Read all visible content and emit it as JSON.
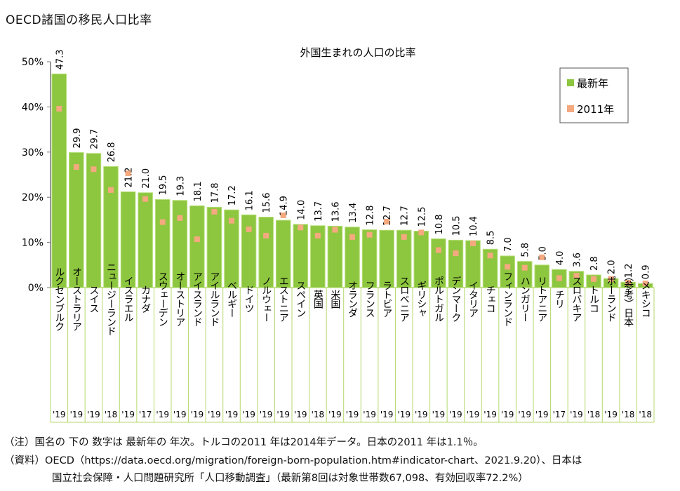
{
  "page_title": "OECD諸国の移民人口比率",
  "chart_data": {
    "type": "bar",
    "title": "外国生まれの人口の比率",
    "xlabel": "",
    "ylabel": "",
    "ylim": [
      0,
      50
    ],
    "yticks": [
      "0%",
      "10%",
      "20%",
      "30%",
      "40%",
      "50%"
    ],
    "legend": {
      "placement": "top-right",
      "entries": [
        "最新年",
        "2011年"
      ]
    },
    "colors": {
      "latest": "#8DC63F",
      "y2011": "#F4A97F"
    },
    "categories": [
      "ルクセンブルク",
      "オーストラリア",
      "スイス",
      "ニュージーランド",
      "イスラエル",
      "カナダ",
      "スウェーデン",
      "オーストリア",
      "アイスランド",
      "アイルランド",
      "ベルギー",
      "ドイツ",
      "ノルウェー",
      "エストニア",
      "スペイン",
      "英国",
      "米国",
      "オランダ",
      "フランス",
      "ラトビア",
      "スロベニア",
      "ギリシャ",
      "ポルトガル",
      "デンマーク",
      "イタリア",
      "チェコ",
      "フィンランド",
      "ハンガリー",
      "リトアニア",
      "チリ",
      "スロバキア",
      "トルコ",
      "ポーランド",
      "（参考）日本",
      "メキシコ"
    ],
    "years": [
      "'19",
      "'19",
      "'19",
      "'18",
      "'19",
      "'17",
      "'19",
      "'19",
      "'19",
      "'19",
      "'19",
      "'19",
      "'19",
      "'19",
      "'19",
      "'18",
      "'19",
      "'19",
      "'19",
      "'19",
      "'19",
      "'19",
      "'19",
      "'19",
      "'19",
      "'19",
      "'19",
      "'19",
      "'19",
      "'17",
      "'19",
      "'18",
      "'19",
      "'18",
      "'18"
    ],
    "series": [
      {
        "name": "最新年",
        "values": [
          47.3,
          29.9,
          29.7,
          26.8,
          21.2,
          21.0,
          19.5,
          19.3,
          18.1,
          17.8,
          17.2,
          16.1,
          15.6,
          14.9,
          14.0,
          13.7,
          13.6,
          13.4,
          12.8,
          12.7,
          12.7,
          12.5,
          10.8,
          10.5,
          10.4,
          8.5,
          7.0,
          5.8,
          5.0,
          4.0,
          3.6,
          2.8,
          2.0,
          1.2,
          0.9
        ],
        "labels": [
          "47.3",
          "29.9",
          "29.7",
          "26.8",
          "21.2",
          "21.0",
          "19.5",
          "19.3",
          "18.1",
          "17.8",
          "17.2",
          "16.1",
          "15.6",
          "14.9",
          "14.0",
          "13.7",
          "13.6",
          "13.4",
          "12.8",
          "12.7",
          "12.7",
          "12.5",
          "10.8",
          "10.5",
          "10.4",
          "8.5",
          "7.0",
          "5.8",
          "5.0",
          "4.0",
          "3.6",
          "2.8",
          "2.0",
          "1.2",
          "0.9"
        ]
      },
      {
        "name": "2011年",
        "values": [
          39.6,
          26.7,
          26.2,
          21.6,
          25.3,
          19.6,
          14.5,
          15.4,
          10.7,
          16.8,
          14.8,
          12.9,
          11.5,
          16.0,
          13.3,
          11.5,
          12.8,
          11.2,
          11.7,
          14.6,
          11.2,
          12.2,
          8.3,
          7.6,
          9.8,
          7.1,
          4.6,
          4.4,
          6.7,
          2.1,
          2.6,
          1.9,
          1.9,
          1.1,
          0.9
        ]
      }
    ]
  },
  "notes": [
    "（注）国名の 下の 数字は 最新年の 年次。トルコの2011 年は2014年データ。日本の2011 年は1.1％。",
    "（資料）OECD（https://data.oecd.org/migration/foreign-born-population.htm#indicator-chart、2021.9.20）、日本は",
    "国立社会保障・人口問題研究所「人口移動調査」（最新第8回は対象世帯数67,098、有効回収率72.2%）"
  ]
}
